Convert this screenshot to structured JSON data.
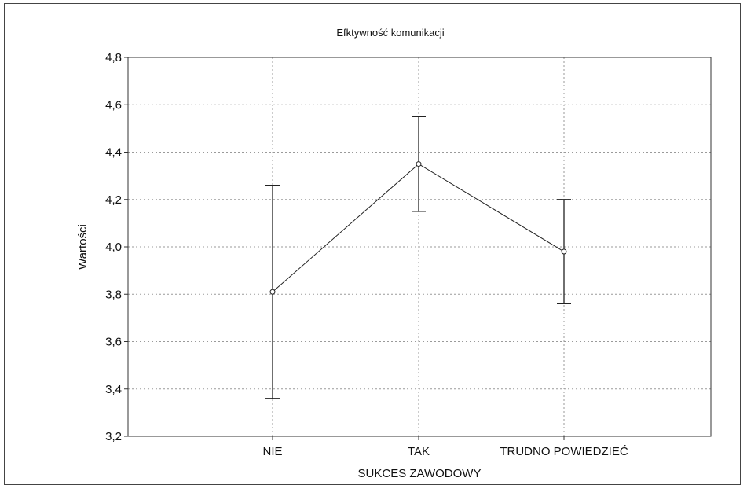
{
  "chart_data": {
    "type": "line",
    "title": "Efktywność komunikacji",
    "xlabel": "SUKCES ZAWODOWY",
    "ylabel": "Wartości",
    "categories": [
      "NIE",
      "TAK",
      "TRUDNO POWIEDZIEĆ"
    ],
    "series": [
      {
        "values": [
          3.81,
          4.35,
          3.98
        ],
        "error_low": [
          3.36,
          4.15,
          3.76
        ],
        "error_high": [
          4.26,
          4.55,
          4.2
        ]
      }
    ],
    "ylim": [
      3.2,
      4.8
    ],
    "yticks": [
      "3,2",
      "3,4",
      "3,6",
      "3,8",
      "4,0",
      "4,2",
      "4,4",
      "4,6",
      "4,8"
    ],
    "grid": true,
    "colors": {
      "line": "#222222",
      "grid": "#9a9a9a",
      "axis": "#333333"
    }
  }
}
